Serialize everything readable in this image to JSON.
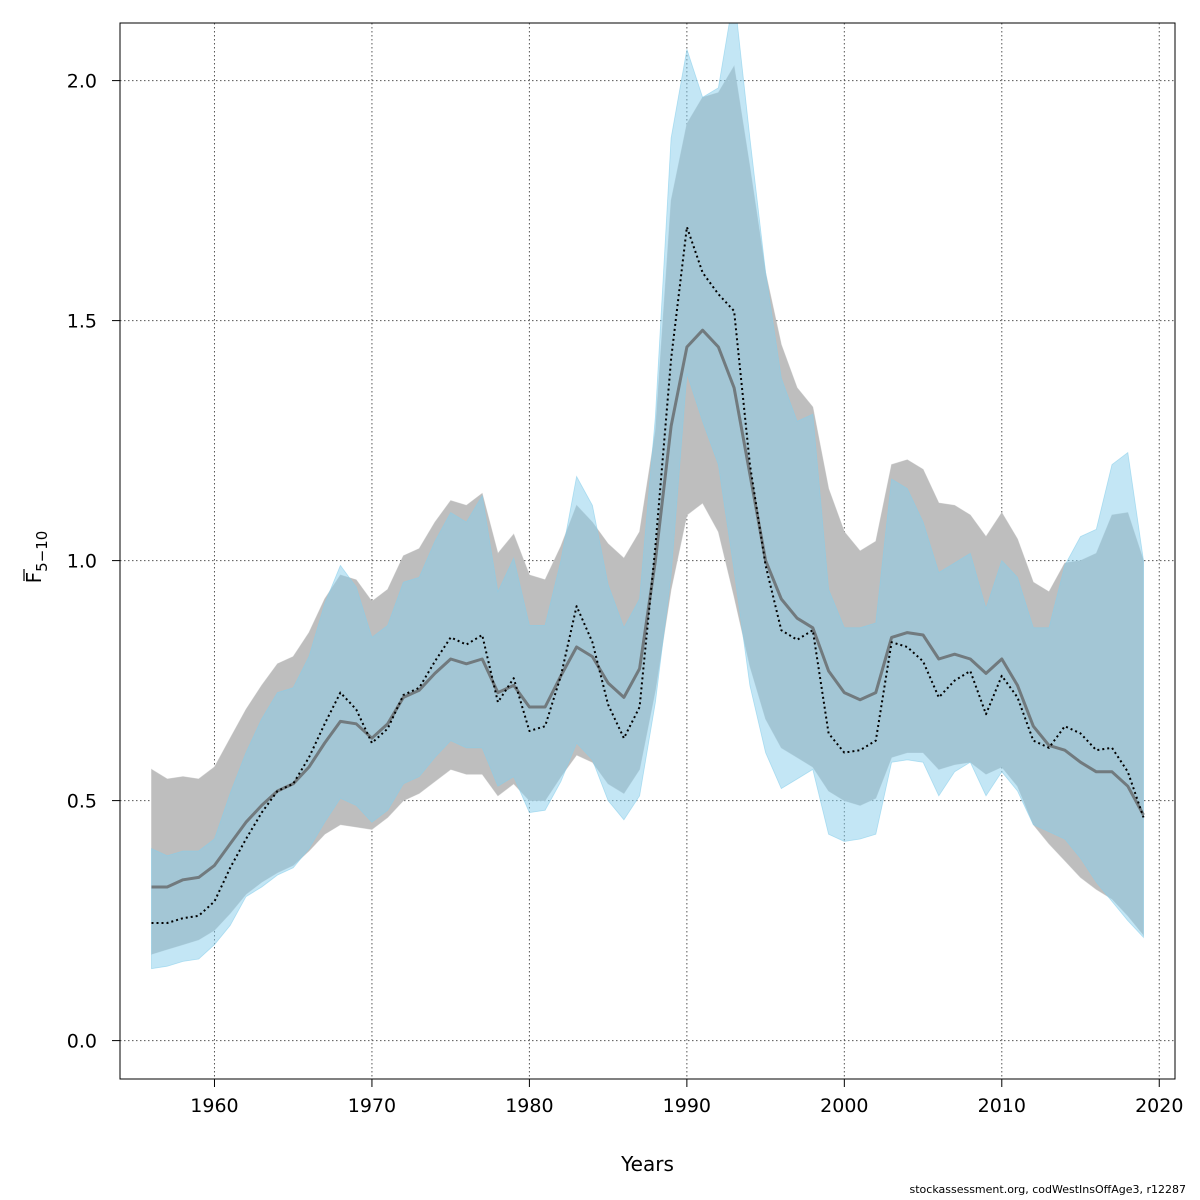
{
  "chart_data": {
    "type": "area",
    "xlabel": "Years",
    "ylabel_main": "F",
    "ylabel_sub": "5−10",
    "xlim": [
      1954,
      2021
    ],
    "ylim": [
      -0.08,
      2.12
    ],
    "xticks": [
      1960,
      1970,
      1980,
      1990,
      2000,
      2010,
      2020
    ],
    "yticks": [
      0.0,
      0.5,
      1.0,
      1.5,
      2.0
    ],
    "ytick_labels": [
      "0.0",
      "0.5",
      "1.0",
      "1.5",
      "2.0"
    ],
    "grid": true,
    "years": [
      1956,
      1957,
      1958,
      1959,
      1960,
      1961,
      1962,
      1963,
      1964,
      1965,
      1966,
      1967,
      1968,
      1969,
      1970,
      1971,
      1972,
      1973,
      1974,
      1975,
      1976,
      1977,
      1978,
      1979,
      1980,
      1981,
      1982,
      1983,
      1984,
      1985,
      1986,
      1987,
      1988,
      1989,
      1990,
      1991,
      1992,
      1993,
      1994,
      1995,
      1996,
      1997,
      1998,
      1999,
      2000,
      2001,
      2002,
      2003,
      2004,
      2005,
      2006,
      2007,
      2008,
      2009,
      2010,
      2011,
      2012,
      2013,
      2014,
      2015,
      2016,
      2017,
      2018,
      2019
    ],
    "series": [
      {
        "role": "base",
        "colors": {
          "band": "#bebebe",
          "line": "#606060"
        },
        "estimate": [
          0.32,
          0.32,
          0.335,
          0.34,
          0.365,
          0.41,
          0.455,
          0.49,
          0.52,
          0.535,
          0.57,
          0.62,
          0.665,
          0.66,
          0.63,
          0.66,
          0.715,
          0.73,
          0.765,
          0.795,
          0.785,
          0.795,
          0.725,
          0.74,
          0.695,
          0.695,
          0.76,
          0.82,
          0.8,
          0.745,
          0.715,
          0.775,
          1.0,
          1.28,
          1.445,
          1.48,
          1.445,
          1.36,
          1.18,
          1.0,
          0.92,
          0.88,
          0.86,
          0.77,
          0.725,
          0.71,
          0.725,
          0.84,
          0.85,
          0.845,
          0.795,
          0.805,
          0.795,
          0.765,
          0.795,
          0.74,
          0.655,
          0.615,
          0.605,
          0.58,
          0.56,
          0.56,
          0.53,
          0.47
        ],
        "upper": [
          0.565,
          0.545,
          0.55,
          0.545,
          0.57,
          0.63,
          0.69,
          0.74,
          0.785,
          0.8,
          0.85,
          0.92,
          0.97,
          0.96,
          0.915,
          0.94,
          1.01,
          1.025,
          1.08,
          1.125,
          1.115,
          1.14,
          1.015,
          1.055,
          0.97,
          0.96,
          1.03,
          1.115,
          1.08,
          1.035,
          1.005,
          1.06,
          1.27,
          1.75,
          1.91,
          1.965,
          1.975,
          2.03,
          1.82,
          1.6,
          1.45,
          1.36,
          1.32,
          1.15,
          1.06,
          1.02,
          1.04,
          1.2,
          1.21,
          1.19,
          1.12,
          1.115,
          1.095,
          1.05,
          1.1,
          1.045,
          0.955,
          0.935,
          0.995,
          1.0,
          1.015,
          1.095,
          1.1,
          1.0
        ],
        "lower": [
          0.18,
          0.19,
          0.2,
          0.21,
          0.23,
          0.265,
          0.305,
          0.33,
          0.35,
          0.365,
          0.395,
          0.43,
          0.45,
          0.445,
          0.44,
          0.465,
          0.5,
          0.515,
          0.54,
          0.565,
          0.555,
          0.555,
          0.51,
          0.535,
          0.5,
          0.5,
          0.55,
          0.595,
          0.58,
          0.535,
          0.515,
          0.565,
          0.73,
          0.94,
          1.095,
          1.12,
          1.06,
          0.925,
          0.78,
          0.67,
          0.61,
          0.59,
          0.57,
          0.52,
          0.5,
          0.49,
          0.505,
          0.59,
          0.6,
          0.6,
          0.565,
          0.575,
          0.58,
          0.555,
          0.57,
          0.53,
          0.45,
          0.41,
          0.375,
          0.34,
          0.315,
          0.295,
          0.26,
          0.22
        ]
      },
      {
        "role": "compared",
        "colors": {
          "band": "#87ceeb",
          "line": "#000000"
        },
        "estimate": [
          0.245,
          0.245,
          0.255,
          0.26,
          0.29,
          0.36,
          0.42,
          0.475,
          0.52,
          0.535,
          0.59,
          0.66,
          0.725,
          0.69,
          0.62,
          0.65,
          0.72,
          0.735,
          0.79,
          0.84,
          0.825,
          0.845,
          0.705,
          0.755,
          0.645,
          0.655,
          0.76,
          0.905,
          0.83,
          0.7,
          0.63,
          0.695,
          1.03,
          1.42,
          1.695,
          1.6,
          1.555,
          1.52,
          1.2,
          0.99,
          0.855,
          0.835,
          0.855,
          0.64,
          0.6,
          0.605,
          0.625,
          0.83,
          0.82,
          0.79,
          0.715,
          0.75,
          0.77,
          0.68,
          0.76,
          0.715,
          0.625,
          0.61,
          0.655,
          0.64,
          0.605,
          0.61,
          0.56,
          0.465
        ],
        "upper": [
          0.4,
          0.385,
          0.395,
          0.395,
          0.42,
          0.515,
          0.6,
          0.67,
          0.725,
          0.735,
          0.8,
          0.91,
          0.99,
          0.945,
          0.84,
          0.865,
          0.955,
          0.965,
          1.04,
          1.1,
          1.08,
          1.135,
          0.935,
          1.005,
          0.865,
          0.865,
          1.0,
          1.175,
          1.115,
          0.95,
          0.86,
          0.92,
          1.3,
          1.88,
          2.065,
          1.965,
          1.985,
          2.18,
          1.88,
          1.6,
          1.38,
          1.29,
          1.305,
          0.94,
          0.86,
          0.86,
          0.87,
          1.17,
          1.15,
          1.08,
          0.975,
          0.995,
          1.015,
          0.9,
          1.0,
          0.965,
          0.86,
          0.86,
          0.99,
          1.05,
          1.065,
          1.2,
          1.225,
          1.0
        ],
        "lower": [
          0.15,
          0.155,
          0.165,
          0.17,
          0.2,
          0.24,
          0.3,
          0.32,
          0.345,
          0.36,
          0.4,
          0.455,
          0.505,
          0.49,
          0.455,
          0.48,
          0.535,
          0.55,
          0.59,
          0.625,
          0.61,
          0.61,
          0.53,
          0.55,
          0.475,
          0.48,
          0.54,
          0.62,
          0.585,
          0.5,
          0.46,
          0.51,
          0.705,
          0.97,
          1.39,
          1.29,
          1.2,
          0.98,
          0.74,
          0.6,
          0.525,
          0.545,
          0.565,
          0.43,
          0.415,
          0.42,
          0.43,
          0.58,
          0.585,
          0.58,
          0.51,
          0.56,
          0.58,
          0.51,
          0.56,
          0.52,
          0.45,
          0.435,
          0.42,
          0.38,
          0.33,
          0.29,
          0.25,
          0.215
        ]
      }
    ]
  },
  "footer": {
    "text": "stockassessment.org, codWestInsOffAge3, r12287"
  }
}
